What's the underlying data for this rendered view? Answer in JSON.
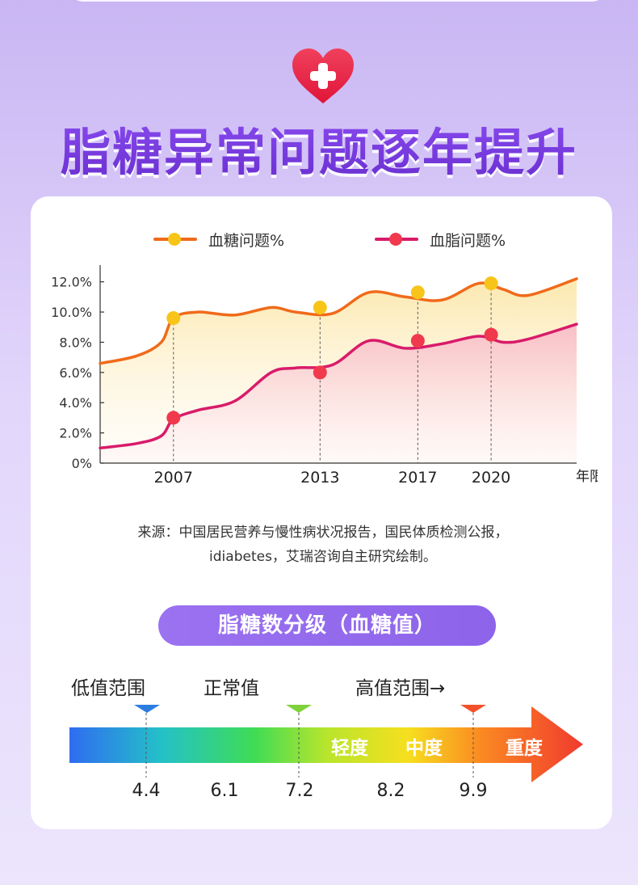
{
  "title": "脂糖异常问题逐年提升",
  "icons": {
    "header": "heart-plus-icon"
  },
  "legend": [
    {
      "label": "血糖问题%",
      "color": "#f06a1a",
      "marker": "#f7c51a"
    },
    {
      "label": "血脂问题%",
      "color": "#d81b6a",
      "marker": "#f0394d"
    }
  ],
  "chart_data": {
    "type": "line",
    "x_unit_label": "年限",
    "ylim": [
      0,
      13
    ],
    "yticks": [
      "0%",
      "2.0%",
      "4.0%",
      "6.0%",
      "8.0%",
      "10.0%",
      "12.0%"
    ],
    "ytick_values": [
      0,
      2,
      4,
      6,
      8,
      10,
      12
    ],
    "xlim": [
      2004,
      2023.5
    ],
    "xticks": [
      2007,
      2013,
      2017,
      2020
    ],
    "series": [
      {
        "name": "血糖问题%",
        "color": "#f06a1a",
        "points": [
          [
            2004,
            6.6
          ],
          [
            2005.5,
            7.1
          ],
          [
            2006.5,
            8.0
          ],
          [
            2007,
            9.6
          ],
          [
            2008,
            10.0
          ],
          [
            2009.5,
            9.8
          ],
          [
            2011,
            10.3
          ],
          [
            2012,
            10.0
          ],
          [
            2013.5,
            9.9
          ],
          [
            2015,
            11.3
          ],
          [
            2016.5,
            11.0
          ],
          [
            2018,
            10.8
          ],
          [
            2019.5,
            11.9
          ],
          [
            2020.5,
            11.5
          ],
          [
            2021.5,
            11.1
          ],
          [
            2023.5,
            12.2
          ]
        ],
        "markers": [
          [
            2007,
            9.6
          ],
          [
            2013,
            10.3
          ],
          [
            2017,
            11.3
          ],
          [
            2020,
            11.9
          ]
        ]
      },
      {
        "name": "血脂问题%",
        "color": "#d81b6a",
        "points": [
          [
            2004,
            1.0
          ],
          [
            2005.5,
            1.3
          ],
          [
            2006.5,
            1.8
          ],
          [
            2007,
            2.9
          ],
          [
            2008,
            3.5
          ],
          [
            2009.5,
            4.1
          ],
          [
            2011,
            6.0
          ],
          [
            2012,
            6.3
          ],
          [
            2013.5,
            6.5
          ],
          [
            2015,
            8.1
          ],
          [
            2016.5,
            7.6
          ],
          [
            2018,
            7.9
          ],
          [
            2019.5,
            8.4
          ],
          [
            2020.5,
            8.0
          ],
          [
            2021.5,
            8.2
          ],
          [
            2023.5,
            9.2
          ]
        ],
        "markers": [
          [
            2007,
            3.0
          ],
          [
            2013,
            6.0
          ],
          [
            2017,
            8.1
          ],
          [
            2020,
            8.5
          ]
        ]
      }
    ]
  },
  "source": {
    "line1": "来源：中国居民营养与慢性病状况报告，国民体质检测公报，",
    "line2": "idiabetes，艾瑞咨询自主研究绘制。"
  },
  "grading": {
    "pill": "脂糖数分级（血糖值）",
    "range_labels": [
      "低值范围",
      "正常值",
      "高值范围→"
    ],
    "severity": [
      "轻度",
      "中度",
      "重度"
    ],
    "ticks": [
      "4.4",
      "6.1",
      "7.2",
      "8.2",
      "9.9"
    ],
    "marker_colors": [
      "#2d7de0",
      "#7fd23a",
      "#f2512a"
    ]
  }
}
